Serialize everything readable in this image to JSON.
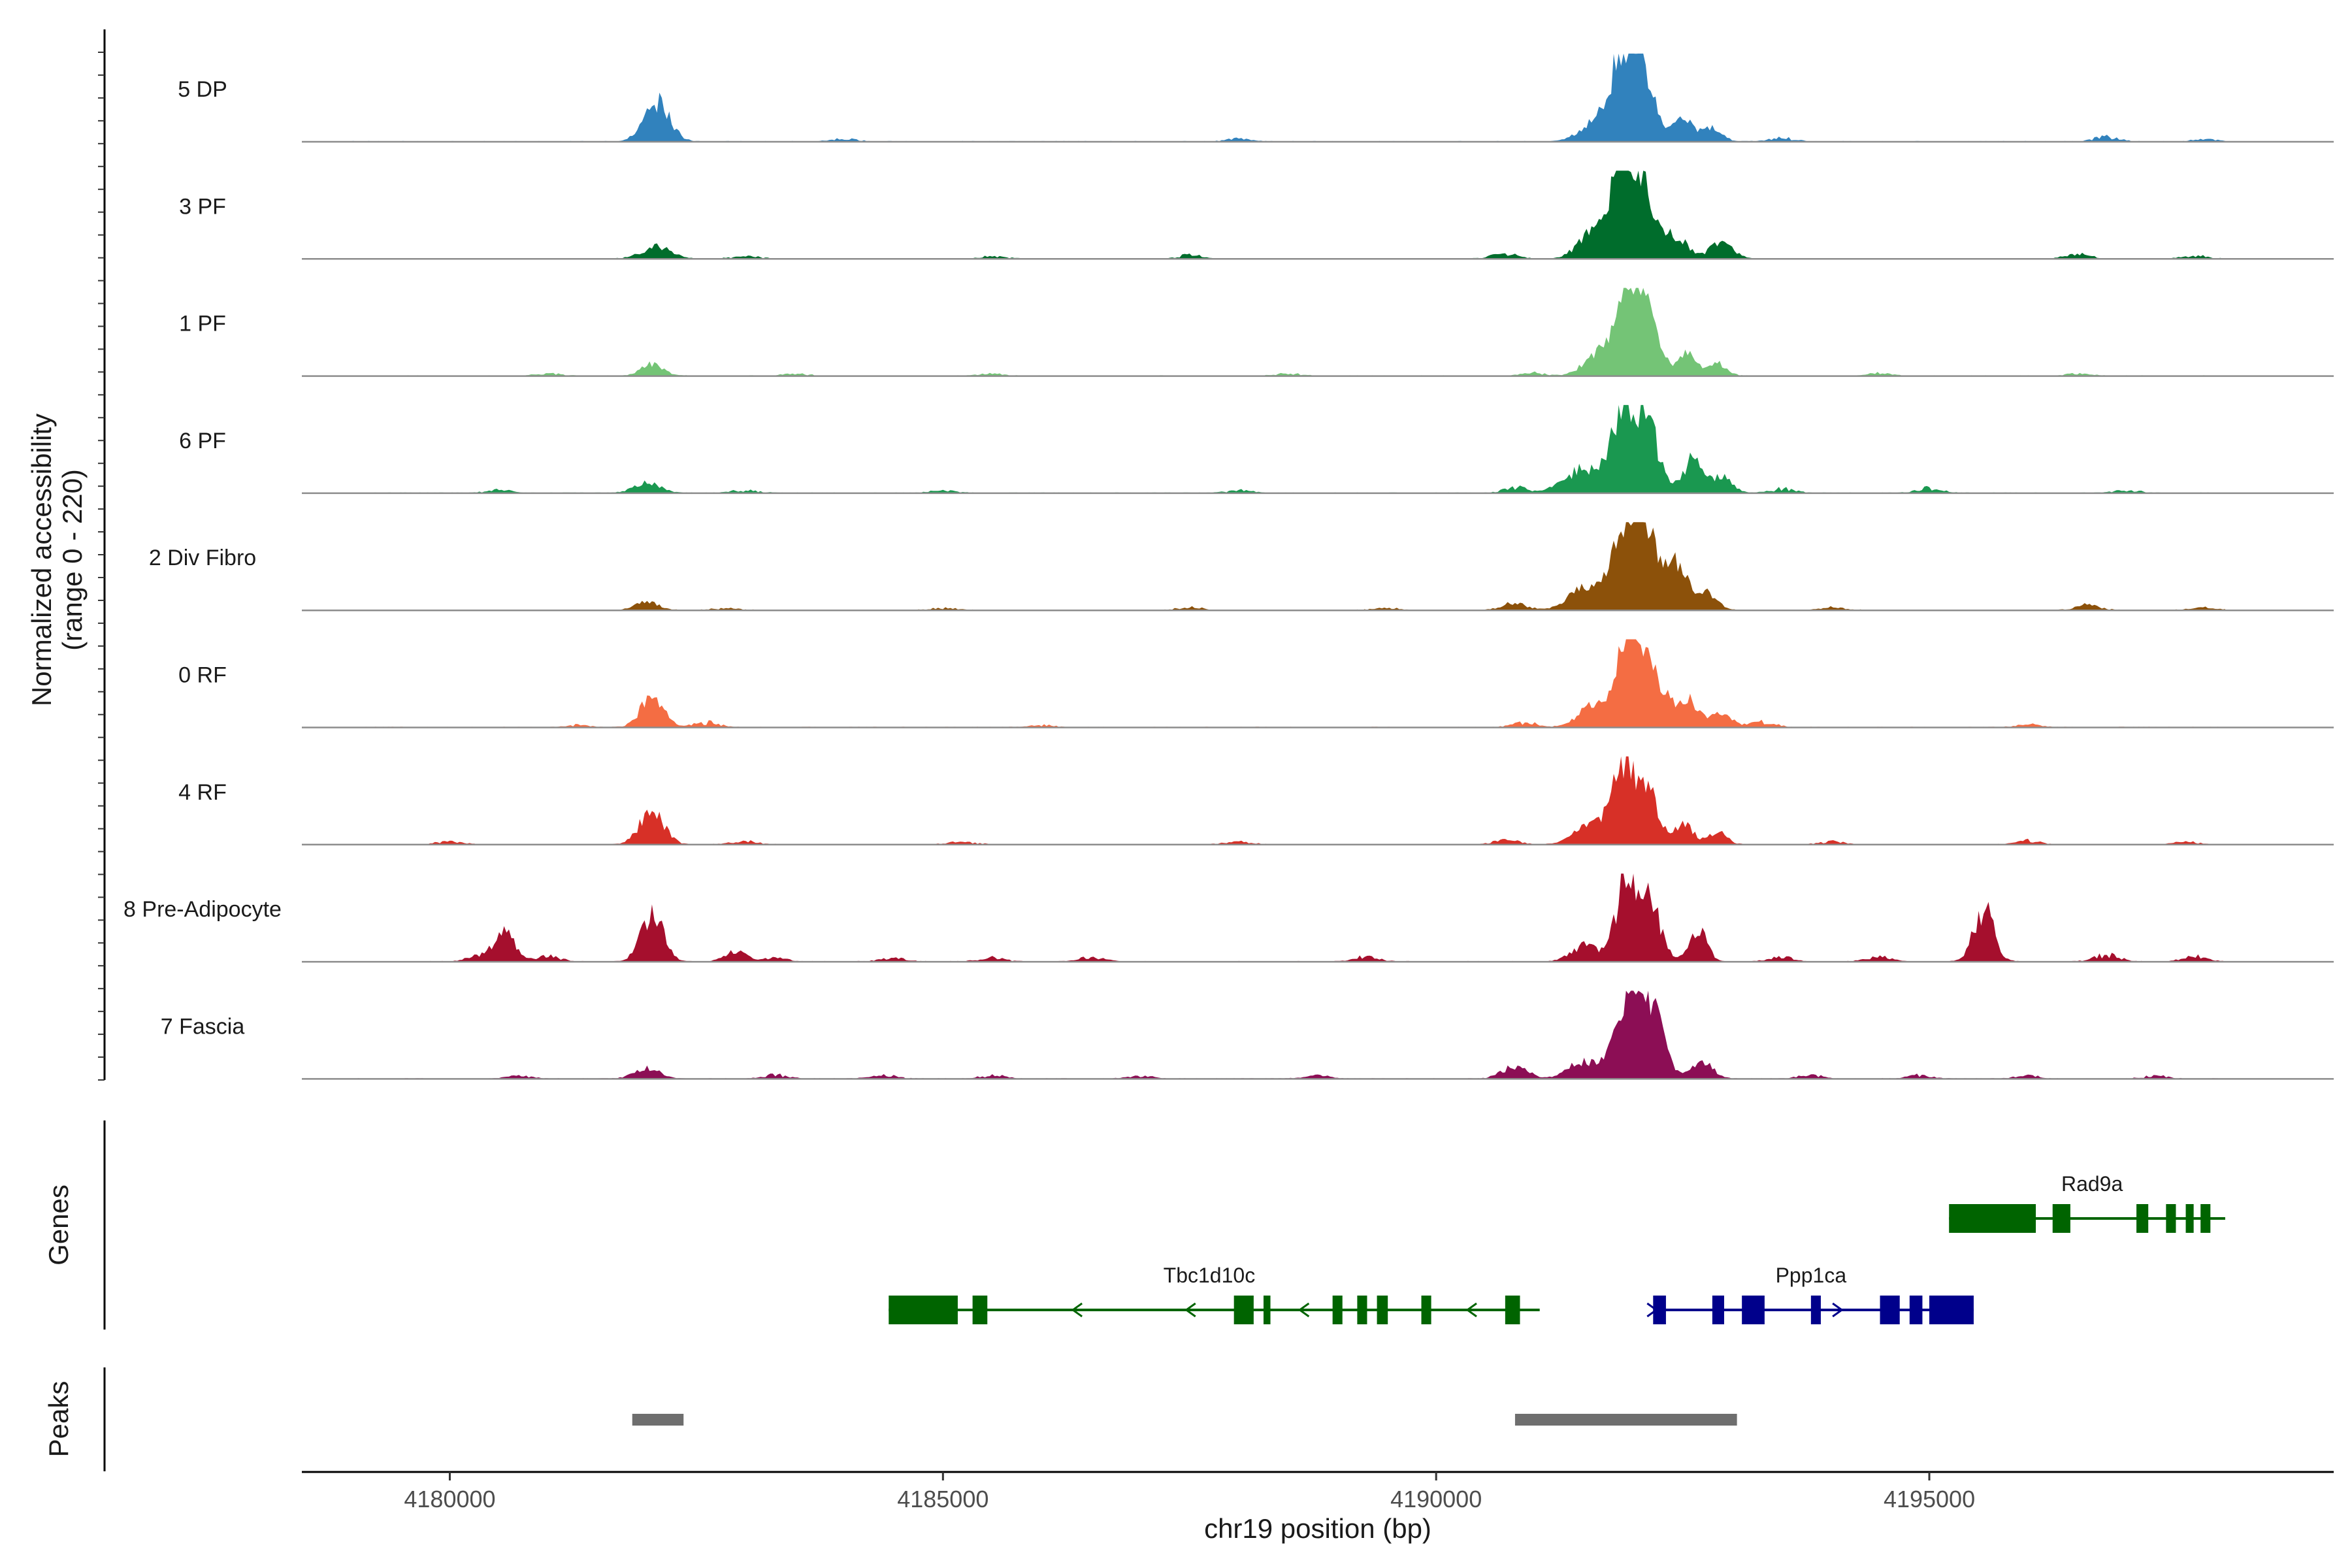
{
  "chart_data": {
    "type": "genome-coverage",
    "chromosome": "chr19",
    "xlabel": "chr19 position (bp)",
    "xlim": [
      4178500,
      4199100
    ],
    "x_ticks": [
      4180000,
      4185000,
      4190000,
      4195000
    ],
    "x_tick_labels": [
      "4180000",
      "4185000",
      "4190000",
      "4195000"
    ],
    "ylabel_line1": "Normalized accessibility",
    "ylabel_line2": "(range 0 - 220)",
    "y_range": [
      0,
      220
    ],
    "tracks": [
      {
        "name": "5 DP",
        "color": "#3182bd",
        "peaks": [
          [
            4182100,
            95,
            130
          ],
          [
            4191900,
            220,
            130
          ],
          [
            4192100,
            130,
            120
          ],
          [
            4192500,
            55,
            100
          ],
          [
            4192800,
            38,
            90
          ],
          [
            4191600,
            45,
            150
          ]
        ],
        "bg": [
          [
            4184000,
            8
          ],
          [
            4188000,
            8
          ],
          [
            4193500,
            10
          ],
          [
            4196800,
            14
          ],
          [
            4197800,
            6
          ]
        ]
      },
      {
        "name": "3 PF",
        "color": "#006d2c",
        "peaks": [
          [
            4182100,
            30,
            150
          ],
          [
            4191900,
            220,
            120
          ],
          [
            4192100,
            140,
            110
          ],
          [
            4191600,
            65,
            150
          ],
          [
            4192400,
            55,
            140
          ],
          [
            4192900,
            45,
            110
          ]
        ],
        "bg": [
          [
            4183000,
            8
          ],
          [
            4185500,
            8
          ],
          [
            4187500,
            10
          ],
          [
            4190700,
            14
          ],
          [
            4196500,
            12
          ],
          [
            4197700,
            10
          ]
        ]
      },
      {
        "name": "1 PF",
        "color": "#74c476",
        "peaks": [
          [
            4182050,
            30,
            110
          ],
          [
            4191950,
            200,
            130
          ],
          [
            4192150,
            130,
            120
          ],
          [
            4191650,
            50,
            150
          ],
          [
            4192550,
            55,
            90
          ],
          [
            4192850,
            30,
            90
          ]
        ],
        "bg": [
          [
            4181000,
            6
          ],
          [
            4183500,
            6
          ],
          [
            4185500,
            6
          ],
          [
            4188500,
            6
          ],
          [
            4191000,
            8
          ],
          [
            4194500,
            8
          ],
          [
            4196500,
            6
          ]
        ]
      },
      {
        "name": "6 PF",
        "color": "#1a9850",
        "peaks": [
          [
            4182000,
            25,
            130
          ],
          [
            4191900,
            200,
            120
          ],
          [
            4192150,
            150,
            120
          ],
          [
            4191500,
            60,
            200
          ],
          [
            4192600,
            80,
            100
          ],
          [
            4192900,
            40,
            100
          ]
        ],
        "bg": [
          [
            4180500,
            8
          ],
          [
            4183000,
            8
          ],
          [
            4185000,
            8
          ],
          [
            4188000,
            8
          ],
          [
            4190800,
            16
          ],
          [
            4193500,
            12
          ],
          [
            4195000,
            14
          ],
          [
            4197000,
            8
          ]
        ]
      },
      {
        "name": "2 Div Fibro",
        "color": "#8c510a",
        "peaks": [
          [
            4182000,
            22,
            110
          ],
          [
            4191950,
            225,
            130
          ],
          [
            4192150,
            140,
            120
          ],
          [
            4191550,
            60,
            180
          ],
          [
            4192450,
            110,
            110
          ],
          [
            4192750,
            40,
            100
          ]
        ],
        "bg": [
          [
            4182800,
            6
          ],
          [
            4185000,
            6
          ],
          [
            4187500,
            8
          ],
          [
            4189500,
            6
          ],
          [
            4190800,
            20
          ],
          [
            4194000,
            8
          ],
          [
            4196600,
            14
          ],
          [
            4197800,
            8
          ]
        ]
      },
      {
        "name": "0 RF",
        "color": "#f46d43",
        "peaks": [
          [
            4182050,
            70,
            120
          ],
          [
            4191950,
            210,
            120
          ],
          [
            4192200,
            130,
            120
          ],
          [
            4191600,
            55,
            150
          ],
          [
            4192550,
            70,
            110
          ],
          [
            4192900,
            40,
            90
          ]
        ],
        "bg": [
          [
            4181300,
            6
          ],
          [
            4182600,
            14
          ],
          [
            4186000,
            6
          ],
          [
            4190900,
            14
          ],
          [
            4193300,
            16
          ],
          [
            4196000,
            8
          ]
        ]
      },
      {
        "name": "4 RF",
        "color": "#d73027",
        "peaks": [
          [
            4182050,
            85,
            120
          ],
          [
            4191900,
            220,
            120
          ],
          [
            4192150,
            120,
            100
          ],
          [
            4191550,
            45,
            150
          ],
          [
            4192500,
            50,
            100
          ],
          [
            4192850,
            30,
            90
          ]
        ],
        "bg": [
          [
            4180000,
            8
          ],
          [
            4183000,
            10
          ],
          [
            4185200,
            8
          ],
          [
            4188000,
            8
          ],
          [
            4190700,
            14
          ],
          [
            4194000,
            8
          ],
          [
            4196000,
            10
          ],
          [
            4197600,
            8
          ]
        ]
      },
      {
        "name": "8 Pre-Adipocyte",
        "color": "#a50f2d",
        "peaks": [
          [
            4180550,
            70,
            110
          ],
          [
            4182050,
            120,
            110
          ],
          [
            4182900,
            25,
            110
          ],
          [
            4191950,
            220,
            120
          ],
          [
            4192200,
            110,
            100
          ],
          [
            4192650,
            80,
            90
          ],
          [
            4195550,
            130,
            100
          ],
          [
            4191500,
            40,
            130
          ]
        ],
        "bg": [
          [
            4180300,
            15
          ],
          [
            4181000,
            14
          ],
          [
            4183300,
            10
          ],
          [
            4184500,
            10
          ],
          [
            4185500,
            10
          ],
          [
            4186500,
            12
          ],
          [
            4189300,
            14
          ],
          [
            4193500,
            12
          ],
          [
            4194500,
            14
          ],
          [
            4196800,
            20
          ],
          [
            4197700,
            14
          ]
        ]
      },
      {
        "name": "7 Fascia",
        "color": "#8c0e55",
        "peaks": [
          [
            4182000,
            25,
            130
          ],
          [
            4191950,
            210,
            130
          ],
          [
            4192200,
            140,
            120
          ],
          [
            4191500,
            45,
            150
          ],
          [
            4190800,
            30,
            130
          ],
          [
            4192700,
            40,
            110
          ]
        ],
        "bg": [
          [
            4180700,
            8
          ],
          [
            4183300,
            10
          ],
          [
            4184400,
            10
          ],
          [
            4185500,
            10
          ],
          [
            4187000,
            8
          ],
          [
            4188800,
            8
          ],
          [
            4193800,
            10
          ],
          [
            4194900,
            10
          ],
          [
            4196000,
            8
          ],
          [
            4197300,
            8
          ]
        ]
      }
    ],
    "genes_label": "Genes",
    "genes": [
      {
        "name": "Rad9a",
        "strand": "+",
        "color": "#006400",
        "row": 0,
        "start": 4195200,
        "end": 4198000,
        "exons": [
          [
            4195200,
            4196080
          ],
          [
            4196250,
            4196430
          ],
          [
            4197100,
            4197220
          ],
          [
            4197400,
            4197500
          ],
          [
            4197600,
            4197680
          ],
          [
            4197750,
            4197850
          ]
        ],
        "arrows": []
      },
      {
        "name": "Tbc1d10c",
        "strand": "-",
        "color": "#006400",
        "row": 1,
        "start": 4184450,
        "end": 4191050,
        "exons": [
          [
            4184450,
            4185150
          ],
          [
            4185300,
            4185450
          ],
          [
            4187950,
            4188150
          ],
          [
            4188250,
            4188320
          ],
          [
            4188950,
            4189050
          ],
          [
            4189200,
            4189300
          ],
          [
            4189400,
            4189510
          ],
          [
            4189850,
            4189950
          ],
          [
            4190700,
            4190850
          ]
        ],
        "arrows": [
          4186350,
          4187500,
          4188650,
          4190350
        ]
      },
      {
        "name": "Ppp1ca",
        "strand": "+",
        "color": "#00008b",
        "row": 1,
        "start": 4192200,
        "end": 4195450,
        "exons": [
          [
            4192200,
            4192330
          ],
          [
            4192800,
            4192920
          ],
          [
            4193100,
            4193330
          ],
          [
            4193800,
            4193900
          ],
          [
            4194500,
            4194700
          ],
          [
            4194800,
            4194930
          ],
          [
            4195000,
            4195450
          ]
        ],
        "arrows": [
          4192200,
          4194080
        ]
      }
    ],
    "peaks_label": "Peaks",
    "peak_regions": [
      [
        4181850,
        4182370
      ],
      [
        4190800,
        4193050
      ]
    ]
  }
}
